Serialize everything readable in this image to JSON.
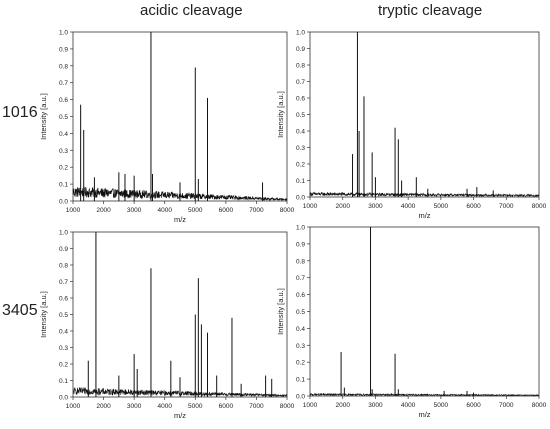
{
  "column_titles": [
    "acidic cleavage",
    "tryptic cleavage"
  ],
  "row_labels": [
    "1016",
    "3405"
  ],
  "chart_data": [
    {
      "type": "line",
      "row": "1016",
      "column": "acidic cleavage",
      "xlabel": "m/z",
      "ylabel": "Intensity [a.u.]",
      "xlim": [
        1000,
        8000
      ],
      "ylim": [
        0,
        1.0
      ],
      "xticks": [
        "1000",
        "2000",
        "3000",
        "4000",
        "5000",
        "6000",
        "7000",
        "8000"
      ],
      "yticks": [
        "0.0",
        "0.1",
        "0.2",
        "0.3",
        "0.4",
        "0.5",
        "0.6",
        "0.7",
        "0.8",
        "0.9",
        "1.0"
      ],
      "baseline": {
        "start": 0.06,
        "end": 0.01
      },
      "peaks": [
        [
          1250,
          0.57
        ],
        [
          1350,
          0.42
        ],
        [
          1700,
          0.14
        ],
        [
          2500,
          0.17
        ],
        [
          2700,
          0.16
        ],
        [
          3000,
          0.15
        ],
        [
          3550,
          1.0
        ],
        [
          3600,
          0.16
        ],
        [
          4500,
          0.11
        ],
        [
          5000,
          0.79
        ],
        [
          5100,
          0.13
        ],
        [
          5400,
          0.61
        ],
        [
          7200,
          0.11
        ]
      ]
    },
    {
      "type": "line",
      "row": "1016",
      "column": "tryptic cleavage",
      "xlabel": "m/z",
      "ylabel": "Intensity [a.u.]",
      "xlim": [
        1000,
        8000
      ],
      "ylim": [
        0,
        1.0
      ],
      "xticks": [
        "1000",
        "2000",
        "3000",
        "4000",
        "5000",
        "6000",
        "7000",
        "8000"
      ],
      "yticks": [
        "0.0",
        "0.1",
        "0.2",
        "0.3",
        "0.4",
        "0.5",
        "0.6",
        "0.7",
        "0.8",
        "0.9",
        "1.0"
      ],
      "baseline": {
        "start": 0.02,
        "end": 0.01
      },
      "peaks": [
        [
          2300,
          0.26
        ],
        [
          2450,
          1.0
        ],
        [
          2500,
          0.4
        ],
        [
          2650,
          0.61
        ],
        [
          2900,
          0.27
        ],
        [
          3000,
          0.12
        ],
        [
          3600,
          0.42
        ],
        [
          3700,
          0.35
        ],
        [
          3800,
          0.1
        ],
        [
          4250,
          0.12
        ],
        [
          4600,
          0.05
        ],
        [
          5800,
          0.05
        ],
        [
          6100,
          0.06
        ],
        [
          6600,
          0.04
        ]
      ]
    },
    {
      "type": "line",
      "row": "3405",
      "column": "acidic cleavage",
      "xlabel": "m/z",
      "ylabel": "Intensity [a.u.]",
      "xlim": [
        1000,
        8000
      ],
      "ylim": [
        0,
        1.0
      ],
      "xticks": [
        "1000",
        "2000",
        "3000",
        "4000",
        "5000",
        "6000",
        "7000",
        "8000"
      ],
      "yticks": [
        "0.0",
        "0.1",
        "0.2",
        "0.3",
        "0.4",
        "0.5",
        "0.6",
        "0.7",
        "0.8",
        "0.9",
        "1.0"
      ],
      "baseline": {
        "start": 0.04,
        "end": 0.01
      },
      "peaks": [
        [
          1500,
          0.22
        ],
        [
          1750,
          1.0
        ],
        [
          2500,
          0.13
        ],
        [
          3000,
          0.26
        ],
        [
          3100,
          0.17
        ],
        [
          3550,
          0.78
        ],
        [
          4200,
          0.22
        ],
        [
          4500,
          0.12
        ],
        [
          5000,
          0.5
        ],
        [
          5100,
          0.72
        ],
        [
          5200,
          0.44
        ],
        [
          5400,
          0.39
        ],
        [
          5700,
          0.13
        ],
        [
          6200,
          0.48
        ],
        [
          6500,
          0.08
        ],
        [
          7300,
          0.13
        ],
        [
          7500,
          0.11
        ]
      ]
    },
    {
      "type": "line",
      "row": "3405",
      "column": "tryptic cleavage",
      "xlabel": "m/z",
      "ylabel": "Intensity [a.u.]",
      "xlim": [
        1000,
        8000
      ],
      "ylim": [
        0,
        1.0
      ],
      "xticks": [
        "1000",
        "2000",
        "3000",
        "4000",
        "5000",
        "6000",
        "7000",
        "8000"
      ],
      "yticks": [
        "0.0",
        "0.1",
        "0.2",
        "0.3",
        "0.4",
        "0.5",
        "0.6",
        "0.7",
        "0.8",
        "0.9",
        "1.0"
      ],
      "baseline": {
        "start": 0.01,
        "end": 0.005
      },
      "peaks": [
        [
          1950,
          0.26
        ],
        [
          2050,
          0.05
        ],
        [
          2850,
          1.0
        ],
        [
          2900,
          0.04
        ],
        [
          3600,
          0.25
        ],
        [
          3700,
          0.04
        ],
        [
          5100,
          0.03
        ],
        [
          5800,
          0.03
        ],
        [
          6000,
          0.02
        ]
      ]
    }
  ]
}
